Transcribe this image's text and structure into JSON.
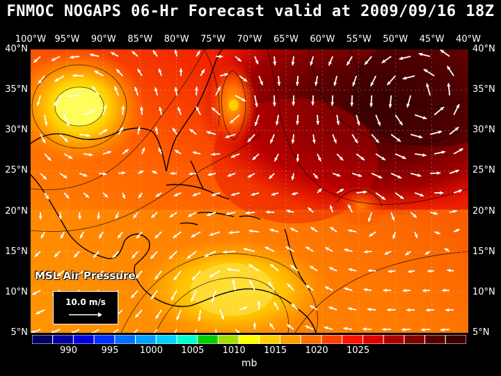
{
  "title": "FNMOC NOGAPS 06-Hr Forecast valid at 2009/09/16 18Z",
  "parameter_label": "MSL Air Pressure",
  "units": "mb",
  "wind_legend": "10.0 m/s",
  "lon_labels": [
    "100°W",
    "95°W",
    "90°W",
    "85°W",
    "80°W",
    "75°W",
    "70°W",
    "65°W",
    "60°W",
    "55°W",
    "50°W",
    "45°W",
    "40°W"
  ],
  "lat_labels": [
    "40°N",
    "35°N",
    "30°N",
    "25°N",
    "20°N",
    "15°N",
    "10°N",
    "5°N"
  ],
  "colorbar": {
    "colors": [
      "#000060",
      "#0000a0",
      "#0000e0",
      "#0030ff",
      "#0070ff",
      "#00a0ff",
      "#00d0ff",
      "#00ffd0",
      "#00d000",
      "#a0e000",
      "#ffff00",
      "#ffd000",
      "#ffa000",
      "#ff7000",
      "#ff4000",
      "#ff1000",
      "#e00000",
      "#b00000",
      "#800000",
      "#580000",
      "#380000"
    ],
    "tick_values": [
      "990",
      "995",
      "1000",
      "1005",
      "1010",
      "1015",
      "1020",
      "1025"
    ]
  },
  "colors": {
    "background": "#000000",
    "text": "#ffffff",
    "wind_vectors": "#ffffff",
    "coastline": "#000000"
  }
}
